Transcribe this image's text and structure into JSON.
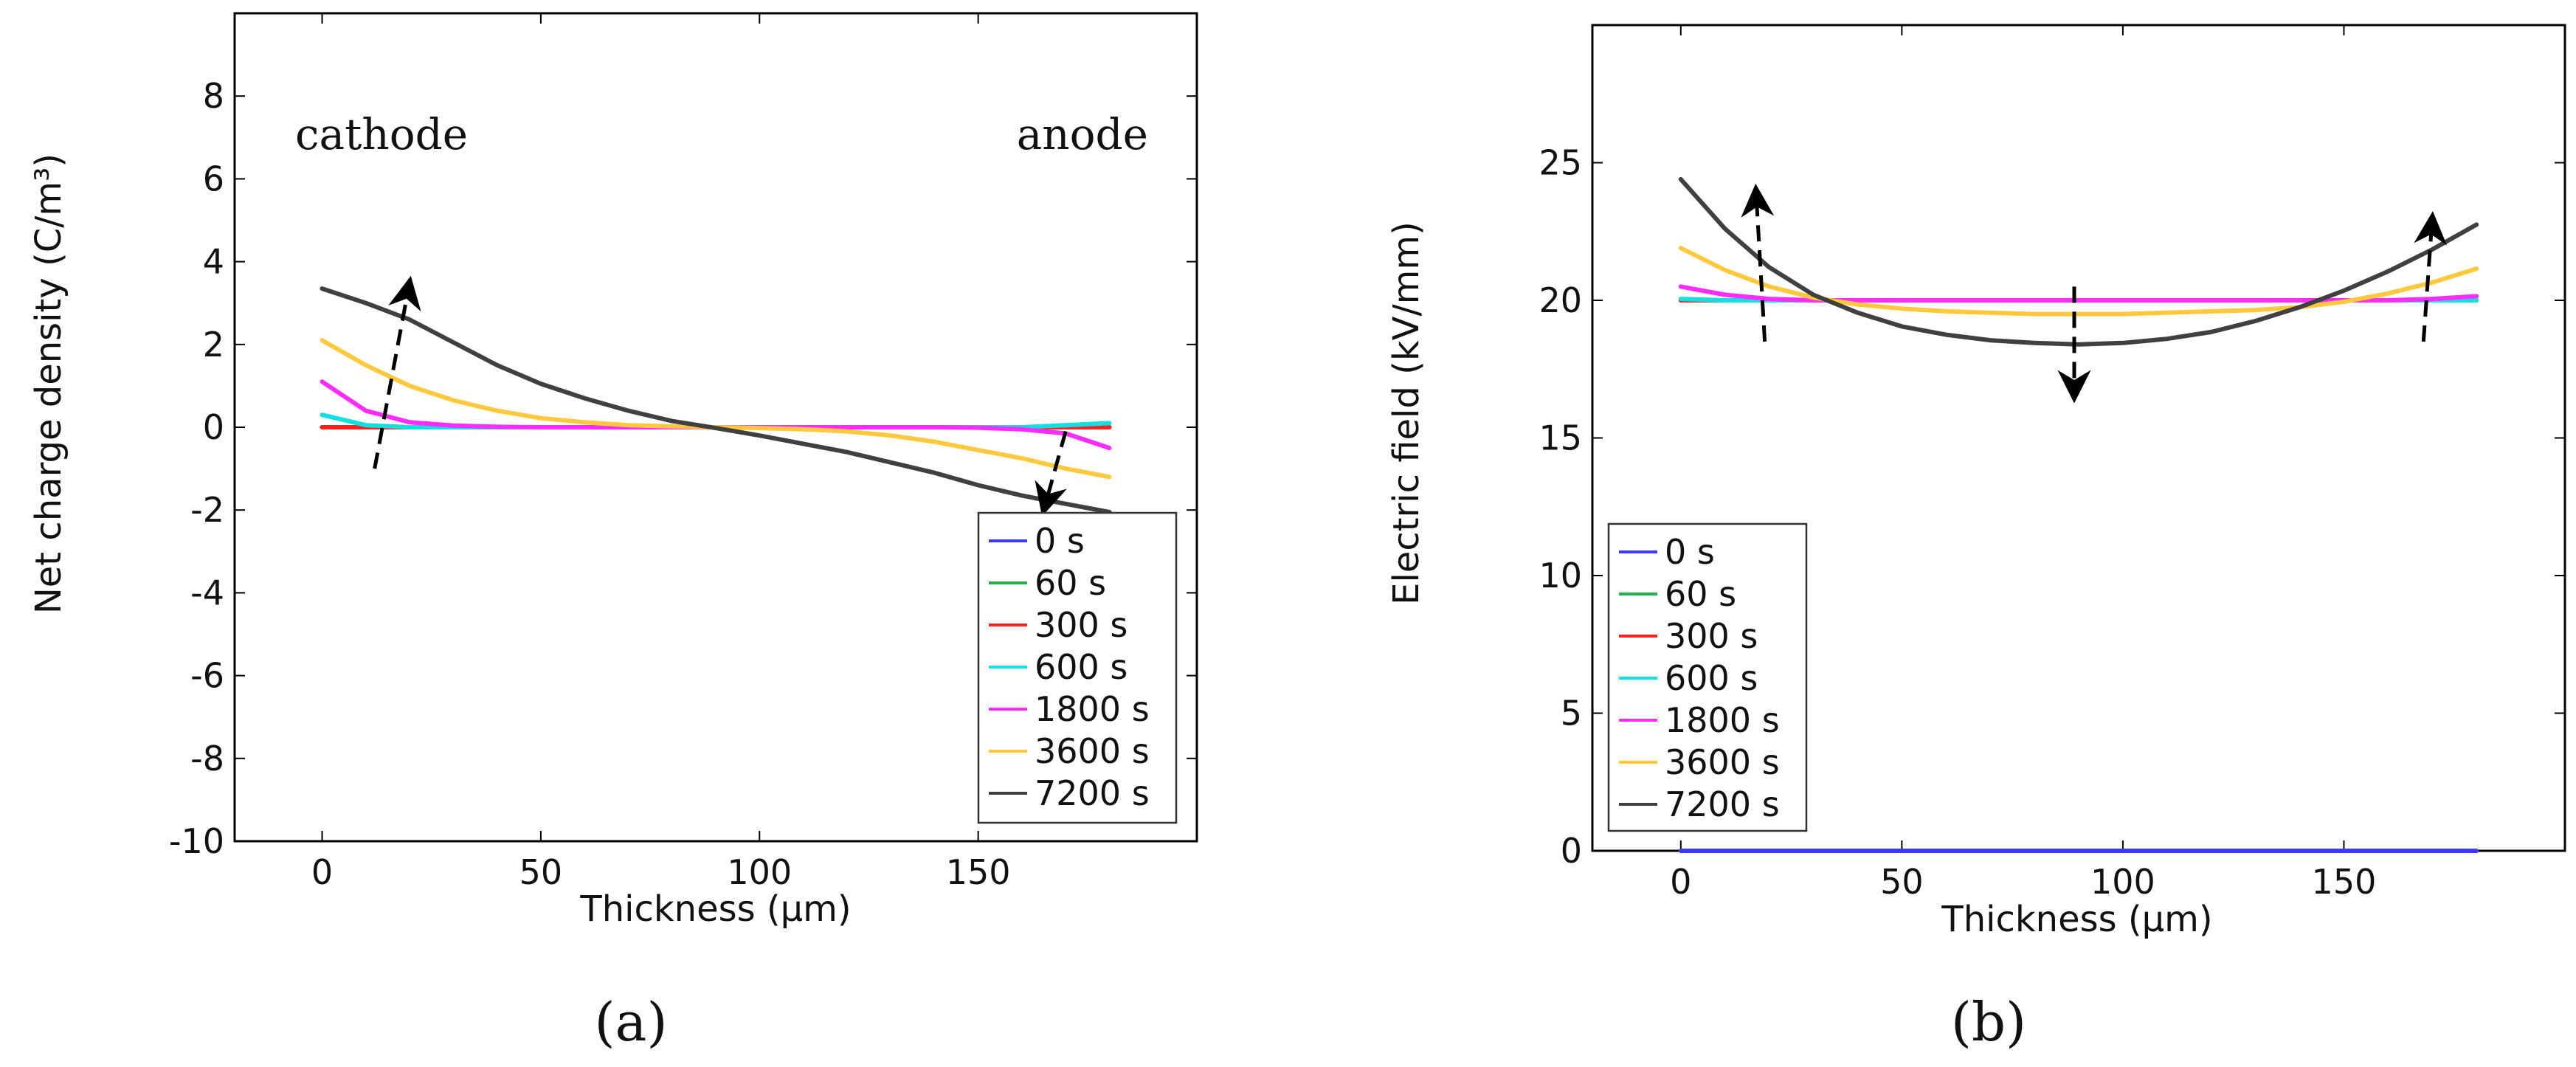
{
  "panels": [
    {
      "id": "a",
      "caption": "(a)",
      "annotations": [
        "cathode",
        "anode"
      ],
      "annotation_color": "#e8141b"
    },
    {
      "id": "b",
      "caption": "(b)",
      "annotations": [],
      "annotation_color": "#e8141b"
    }
  ],
  "chart_data": [
    {
      "type": "line",
      "panel": "a",
      "title": "",
      "xlabel": "Thickness (μm)",
      "ylabel": "Net charge density (C/m³)",
      "xlim": [
        -20,
        200
      ],
      "ylim": [
        -10,
        10
      ],
      "xticks": [
        0,
        50,
        100,
        150
      ],
      "yticks": [
        -10,
        -8,
        -6,
        -4,
        -2,
        0,
        2,
        4,
        6,
        8
      ],
      "xtick_labels": [
        "0",
        "50",
        "100",
        "150"
      ],
      "ytick_labels": [
        "-10",
        "-8",
        "-6",
        "-4",
        "-2",
        "0",
        "2",
        "4",
        "6",
        "8"
      ],
      "grid": false,
      "legend_position": "bottom-right",
      "x": [
        0,
        10,
        20,
        30,
        40,
        50,
        60,
        70,
        80,
        90,
        100,
        110,
        120,
        130,
        140,
        150,
        160,
        170,
        180
      ],
      "series": [
        {
          "name": "0 s",
          "color": "#3b3bff",
          "values": [
            0,
            0,
            0,
            0,
            0,
            0,
            0,
            0,
            0,
            0,
            0,
            0,
            0,
            0,
            0,
            0,
            0,
            0,
            0
          ]
        },
        {
          "name": "60 s",
          "color": "#22b14c",
          "values": [
            0,
            0,
            0,
            0,
            0,
            0,
            0,
            0,
            0,
            0,
            0,
            0,
            0,
            0,
            0,
            0,
            0,
            0,
            0
          ]
        },
        {
          "name": "300 s",
          "color": "#ff2020",
          "values": [
            0,
            0,
            0,
            0,
            0,
            0,
            0,
            0,
            0,
            0,
            0,
            0,
            0,
            0,
            0,
            0,
            0,
            0,
            0
          ]
        },
        {
          "name": "600 s",
          "color": "#12e0e0",
          "values": [
            0.3,
            0.05,
            0,
            0,
            0,
            0,
            0,
            0,
            0,
            0,
            0,
            0,
            0,
            0,
            0,
            0,
            0,
            0.05,
            0.1
          ]
        },
        {
          "name": "1800 s",
          "color": "#ff2bff",
          "values": [
            1.1,
            0.4,
            0.12,
            0.04,
            0.01,
            0,
            0,
            0,
            0,
            0,
            0,
            0,
            0,
            0,
            0,
            -0.01,
            -0.05,
            -0.15,
            -0.5
          ]
        },
        {
          "name": "3600 s",
          "color": "#ffc83d",
          "values": [
            2.1,
            1.5,
            1.0,
            0.65,
            0.4,
            0.22,
            0.12,
            0.05,
            0.02,
            0,
            -0.02,
            -0.05,
            -0.1,
            -0.2,
            -0.35,
            -0.55,
            -0.75,
            -1.0,
            -1.2
          ]
        },
        {
          "name": "7200 s",
          "color": "#404040",
          "values": [
            3.35,
            3.0,
            2.6,
            2.05,
            1.5,
            1.05,
            0.7,
            0.4,
            0.15,
            -0.02,
            -0.2,
            -0.4,
            -0.6,
            -0.85,
            -1.1,
            -1.4,
            -1.65,
            -1.85,
            -2.05
          ]
        }
      ],
      "arrows": [
        {
          "from": [
            12,
            -1.0
          ],
          "to": [
            20,
            3.5
          ]
        },
        {
          "from": [
            170,
            -0.1
          ],
          "to": [
            165,
            -2.0
          ]
        }
      ]
    },
    {
      "type": "line",
      "panel": "b",
      "title": "",
      "xlabel": "Thickness (μm)",
      "ylabel": "Electric field  (kV/mm)",
      "xlim": [
        -20,
        200
      ],
      "ylim": [
        0,
        30
      ],
      "xticks": [
        0,
        50,
        100,
        150
      ],
      "yticks": [
        0,
        5,
        10,
        15,
        20,
        25
      ],
      "xtick_labels": [
        "0",
        "50",
        "100",
        "150"
      ],
      "ytick_labels": [
        "0",
        "5",
        "10",
        "15",
        "20",
        "25"
      ],
      "grid": false,
      "legend_position": "bottom-left",
      "x": [
        0,
        10,
        20,
        30,
        40,
        50,
        60,
        70,
        80,
        90,
        100,
        110,
        120,
        130,
        140,
        150,
        160,
        170,
        180
      ],
      "series": [
        {
          "name": "0 s",
          "color": "#3b3bff",
          "values": [
            0,
            0,
            0,
            0,
            0,
            0,
            0,
            0,
            0,
            0,
            0,
            0,
            0,
            0,
            0,
            0,
            0,
            0,
            0
          ]
        },
        {
          "name": "60 s",
          "color": "#22b14c",
          "values": [
            20,
            20,
            20,
            20,
            20,
            20,
            20,
            20,
            20,
            20,
            20,
            20,
            20,
            20,
            20,
            20,
            20,
            20,
            20
          ]
        },
        {
          "name": "300 s",
          "color": "#ff2020",
          "values": [
            20,
            20,
            20,
            20,
            20,
            20,
            20,
            20,
            20,
            20,
            20,
            20,
            20,
            20,
            20,
            20,
            20,
            20,
            20
          ]
        },
        {
          "name": "600 s",
          "color": "#12e0e0",
          "values": [
            20.05,
            20,
            20,
            20,
            20,
            20,
            20,
            20,
            20,
            20,
            20,
            20,
            20,
            20,
            20,
            20,
            20,
            20,
            20
          ]
        },
        {
          "name": "1800 s",
          "color": "#ff2bff",
          "values": [
            20.5,
            20.2,
            20.05,
            20,
            20,
            20,
            20,
            20,
            20,
            20,
            20,
            20,
            20,
            20,
            20,
            20,
            20,
            20.05,
            20.15
          ]
        },
        {
          "name": "3600 s",
          "color": "#ffc83d",
          "values": [
            21.9,
            21.1,
            20.5,
            20.1,
            19.85,
            19.7,
            19.6,
            19.55,
            19.5,
            19.5,
            19.5,
            19.55,
            19.6,
            19.65,
            19.75,
            19.95,
            20.25,
            20.65,
            21.15
          ]
        },
        {
          "name": "7200 s",
          "color": "#404040",
          "values": [
            24.4,
            22.6,
            21.2,
            20.2,
            19.55,
            19.05,
            18.75,
            18.55,
            18.45,
            18.4,
            18.45,
            18.6,
            18.85,
            19.25,
            19.75,
            20.35,
            21.05,
            21.85,
            22.75
          ]
        }
      ],
      "arrows": [
        {
          "from": [
            19,
            18.5
          ],
          "to": [
            17,
            24
          ]
        },
        {
          "from": [
            89,
            20.5
          ],
          "to": [
            89,
            16.5
          ]
        },
        {
          "from": [
            168,
            18.5
          ],
          "to": [
            170,
            23
          ]
        }
      ]
    }
  ]
}
